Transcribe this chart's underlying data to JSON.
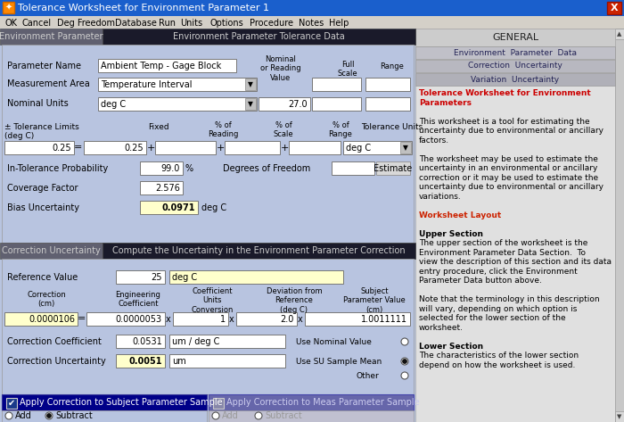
{
  "title": "Tolerance Worksheet for Environment Parameter 1",
  "title_bar_color": "#1a5fcc",
  "menu_items": [
    "OK",
    "Cancel",
    "Deg Freedom",
    "Database",
    "Run",
    "Units",
    "Options",
    "Procedure",
    "Notes",
    "Help"
  ],
  "menu_bg": "#d4d0c8",
  "tab1_left": "Environment Parameter",
  "tab1_right": "Environment Parameter Tolerance Data",
  "tab2_left": "Correction Uncertainty",
  "tab2_right": "Compute the Uncertainty in the Environment Parameter Correction",
  "tab_bg_inactive": "#606070",
  "tab_bg_dark": "#1a1a2a",
  "panel_bg": "#b8c4e0",
  "right_panel_bg": "#e0e0e0",
  "field_bg": "#ffffff",
  "yellow_field_bg": "#ffffcc",
  "param_name_val": "Ambient Temp - Gage Block",
  "meas_area_val": "Temperature Interval",
  "nominal_units_val": "deg C",
  "nominal_reading_val": "27.0",
  "tolerance_val": "0.25",
  "fixed_val": "0.25",
  "tol_units_val": "deg C",
  "in_tol_prob_val": "99.0",
  "coverage_factor_val": "2.576",
  "bias_uncertainty_val": "0.0971",
  "bias_uncertainty_units": "deg C",
  "ref_value_val": "25",
  "ref_units_val": "deg C",
  "correction_val": "0.0000106",
  "eng_coeff_val": "0.0000053",
  "coeff_conv_val": "1",
  "deviation_val": "2.0",
  "subject_val": "1.0011111",
  "corr_coeff_val": "0.0531",
  "corr_coeff_units": "um / deg C",
  "corr_uncertainty_val": "0.0051",
  "corr_uncertainty_units": "um",
  "right_body": [
    {
      "text": "Tolerance Worksheet for Environment",
      "bold": true,
      "color": "#cc0000",
      "indent": 4
    },
    {
      "text": "Parameters",
      "bold": true,
      "color": "#cc0000",
      "indent": 4
    },
    {
      "text": "",
      "bold": false,
      "color": "#000000",
      "indent": 4
    },
    {
      "text": "This worksheet is a tool for estimating the",
      "bold": false,
      "color": "#000000",
      "indent": 4
    },
    {
      "text": "uncertainty due to environmental or ancillary",
      "bold": false,
      "color": "#000000",
      "indent": 4
    },
    {
      "text": "factors.",
      "bold": false,
      "color": "#000000",
      "indent": 4
    },
    {
      "text": "",
      "bold": false,
      "color": "#000000",
      "indent": 4
    },
    {
      "text": "The worksheet may be used to estimate the",
      "bold": false,
      "color": "#000000",
      "indent": 4
    },
    {
      "text": "uncertainty in an environmental or ancillary",
      "bold": false,
      "color": "#000000",
      "indent": 4
    },
    {
      "text": "correction or it may be used to estimate the",
      "bold": false,
      "color": "#000000",
      "indent": 4
    },
    {
      "text": "uncertainty due to environmental or ancillary",
      "bold": false,
      "color": "#000000",
      "indent": 4
    },
    {
      "text": "variations.",
      "bold": false,
      "color": "#000000",
      "indent": 4
    },
    {
      "text": "",
      "bold": false,
      "color": "#000000",
      "indent": 4
    },
    {
      "text": "Worksheet Layout",
      "bold": true,
      "color": "#cc2200",
      "indent": 4
    },
    {
      "text": "",
      "bold": false,
      "color": "#000000",
      "indent": 4
    },
    {
      "text": "Upper Section",
      "bold": true,
      "color": "#000000",
      "indent": 4
    },
    {
      "text": "The upper section of the worksheet is the",
      "bold": false,
      "color": "#000000",
      "indent": 4
    },
    {
      "text": "Environment Parameter Data Section.  To",
      "bold": false,
      "color": "#000000",
      "indent": 4
    },
    {
      "text": "view the description of this section and its data",
      "bold": false,
      "color": "#000000",
      "indent": 4
    },
    {
      "text": "entry procedure, click the Environment",
      "bold": false,
      "color": "#000000",
      "indent": 4
    },
    {
      "text": "Parameter Data button above.",
      "bold": false,
      "color": "#000000",
      "indent": 4
    },
    {
      "text": "",
      "bold": false,
      "color": "#000000",
      "indent": 4
    },
    {
      "text": "Note that the terminology in this description",
      "bold": false,
      "color": "#000000",
      "indent": 4
    },
    {
      "text": "will vary, depending on which option is",
      "bold": false,
      "color": "#000000",
      "indent": 4
    },
    {
      "text": "selected for the lower section of the",
      "bold": false,
      "color": "#000000",
      "indent": 4
    },
    {
      "text": "worksheet.",
      "bold": false,
      "color": "#000000",
      "indent": 4
    },
    {
      "text": "",
      "bold": false,
      "color": "#000000",
      "indent": 4
    },
    {
      "text": "Lower Section",
      "bold": true,
      "color": "#000000",
      "indent": 4
    },
    {
      "text": "The characteristics of the lower section",
      "bold": false,
      "color": "#000000",
      "indent": 4
    },
    {
      "text": "depend on how the worksheet is used.",
      "bold": false,
      "color": "#000000",
      "indent": 4
    }
  ]
}
